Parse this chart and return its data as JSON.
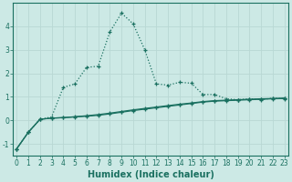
{
  "xlabel": "Humidex (Indice chaleur)",
  "bg_color": "#cce9e5",
  "grid_color": "#b8d8d4",
  "line_color": "#1a7060",
  "line1_x": [
    0,
    1,
    2,
    3,
    4,
    5,
    6,
    7,
    8,
    9,
    10,
    11,
    12,
    13,
    14,
    15,
    16,
    17,
    18,
    19,
    20,
    21,
    22,
    23
  ],
  "line1_y": [
    -1.2,
    -0.5,
    0.05,
    0.15,
    1.4,
    1.55,
    2.25,
    2.3,
    3.75,
    4.55,
    4.1,
    3.0,
    1.55,
    1.5,
    1.62,
    1.58,
    1.1,
    1.1,
    0.92,
    0.88,
    0.92,
    0.88,
    0.95,
    0.92
  ],
  "line2_x": [
    0,
    1,
    2,
    3,
    4,
    5,
    6,
    7,
    8,
    9,
    10,
    11,
    12,
    13,
    14,
    15,
    16,
    17,
    18,
    19,
    20,
    21,
    22,
    23
  ],
  "line2_y": [
    -1.2,
    -0.5,
    0.05,
    0.1,
    0.12,
    0.15,
    0.18,
    0.22,
    0.28,
    0.35,
    0.42,
    0.48,
    0.54,
    0.6,
    0.66,
    0.72,
    0.78,
    0.82,
    0.84,
    0.86,
    0.88,
    0.9,
    0.92,
    0.93
  ],
  "line3_x": [
    0,
    1,
    2,
    3,
    4,
    5,
    6,
    7,
    8,
    9,
    10,
    11,
    12,
    13,
    14,
    15,
    16,
    17,
    18,
    19,
    20,
    21,
    22,
    23
  ],
  "line3_y": [
    -1.2,
    -0.5,
    0.05,
    0.1,
    0.12,
    0.16,
    0.2,
    0.25,
    0.31,
    0.38,
    0.45,
    0.51,
    0.57,
    0.63,
    0.69,
    0.74,
    0.8,
    0.84,
    0.86,
    0.88,
    0.9,
    0.92,
    0.93,
    0.95
  ],
  "ylim": [
    -1.5,
    5.0
  ],
  "xlim": [
    -0.3,
    23.3
  ],
  "yticks": [
    -1,
    0,
    1,
    2,
    3,
    4
  ],
  "xticks": [
    0,
    1,
    2,
    3,
    4,
    5,
    6,
    7,
    8,
    9,
    10,
    11,
    12,
    13,
    14,
    15,
    16,
    17,
    18,
    19,
    20,
    21,
    22,
    23
  ],
  "xtick_labels": [
    "0",
    "1",
    "2",
    "3",
    "4",
    "5",
    "6",
    "7",
    "8",
    "9",
    "10",
    "11",
    "12",
    "13",
    "14",
    "15",
    "16",
    "17",
    "18",
    "19",
    "20",
    "21",
    "22",
    "23"
  ],
  "tick_fontsize": 5.5,
  "xlabel_fontsize": 7.0,
  "marker": "+"
}
